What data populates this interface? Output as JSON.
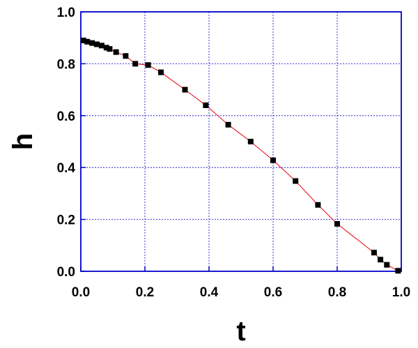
{
  "chart_data": {
    "type": "line",
    "x_label": "t",
    "y_label": "h",
    "x": [
      0.008,
      0.02,
      0.035,
      0.05,
      0.065,
      0.08,
      0.09,
      0.11,
      0.14,
      0.17,
      0.21,
      0.25,
      0.325,
      0.39,
      0.46,
      0.53,
      0.6,
      0.67,
      0.74,
      0.8,
      0.915,
      0.935,
      0.955,
      0.99
    ],
    "values": [
      0.89,
      0.885,
      0.88,
      0.875,
      0.87,
      0.862,
      0.857,
      0.845,
      0.83,
      0.8,
      0.795,
      0.767,
      0.7,
      0.64,
      0.565,
      0.5,
      0.428,
      0.348,
      0.256,
      0.183,
      0.072,
      0.045,
      0.025,
      0.002
    ],
    "line_color": "#e8000b",
    "marker_color": "#000000",
    "axis_color": "#0000c8",
    "grid": true,
    "xlim": [
      0,
      1
    ],
    "ylim": [
      0,
      1
    ],
    "xticks": [
      {
        "value": 0,
        "label": "0.0"
      },
      {
        "value": 0.2,
        "label": "0.2"
      },
      {
        "value": 0.4,
        "label": "0.4"
      },
      {
        "value": 0.6,
        "label": "0.6"
      },
      {
        "value": 0.8,
        "label": "0.8"
      },
      {
        "value": 1,
        "label": "1.0"
      }
    ],
    "yticks": [
      {
        "value": 0,
        "label": "0.0"
      },
      {
        "value": 0.2,
        "label": "0.2"
      },
      {
        "value": 0.4,
        "label": "0.4"
      },
      {
        "value": 0.6,
        "label": "0.6"
      },
      {
        "value": 0.8,
        "label": "0.8"
      },
      {
        "value": 1,
        "label": "1.0"
      }
    ]
  }
}
